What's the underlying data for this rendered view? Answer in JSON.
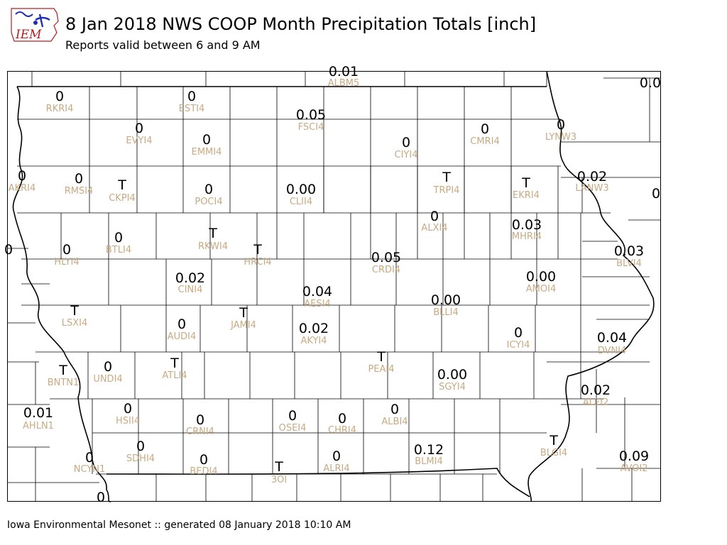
{
  "header": {
    "logo_text": "IEM",
    "title": "8 Jan 2018 NWS COOP Month Precipitation Totals [inch]",
    "subtitle": "Reports valid between 6 and 9 AM"
  },
  "footer": {
    "text": "Iowa Environmental Mesonet :: generated 08 January 2018 10:10 AM"
  },
  "colors": {
    "station_id": "#c8aa82",
    "value": "#000000",
    "county_line": "#000000",
    "logo_blue": "#1f2fb0",
    "logo_red": "#b22222"
  },
  "stations": [
    {
      "id": "ALBM5",
      "value": "0.01"
    },
    {
      "id": "RKRI4",
      "value": "0"
    },
    {
      "id": "ESTI4",
      "value": "0"
    },
    {
      "id": "FSCI4",
      "value": "0.05"
    },
    {
      "id": "EVYI4",
      "value": "0"
    },
    {
      "id": "EMMI4",
      "value": "0"
    },
    {
      "id": "CIYI4",
      "value": "0"
    },
    {
      "id": "CMRI4",
      "value": "0"
    },
    {
      "id": "LYNW3",
      "value": "0"
    },
    {
      "id": "RMSI4",
      "value": "0"
    },
    {
      "id": "CKPI4",
      "value": "T"
    },
    {
      "id": "POCI4",
      "value": "0"
    },
    {
      "id": "CLII4",
      "value": "0.00"
    },
    {
      "id": "TRPI4",
      "value": "T"
    },
    {
      "id": "EKRI4",
      "value": "T"
    },
    {
      "id": "LANW3",
      "value": "0.02"
    },
    {
      "id": "ALXI4",
      "value": "0"
    },
    {
      "id": "MHRI4",
      "value": "0.03"
    },
    {
      "id": "BTLI4",
      "value": "0"
    },
    {
      "id": "RKWI4",
      "value": "T"
    },
    {
      "id": "HRCI4",
      "value": "T"
    },
    {
      "id": "HLYI4",
      "value": "0"
    },
    {
      "id": "CRDI4",
      "value": "0.05"
    },
    {
      "id": "BLVI4",
      "value": "0.03"
    },
    {
      "id": "CINI4",
      "value": "0.02"
    },
    {
      "id": "AMOI4",
      "value": "0.00"
    },
    {
      "id": "AESI4",
      "value": "0.04"
    },
    {
      "id": "BLLI4",
      "value": "0.00"
    },
    {
      "id": "LSXI4",
      "value": "T"
    },
    {
      "id": "AUDI4",
      "value": "0"
    },
    {
      "id": "JAMI4",
      "value": "T"
    },
    {
      "id": "AKYI4",
      "value": "0.02"
    },
    {
      "id": "ICYI4",
      "value": "0"
    },
    {
      "id": "DVNI4",
      "value": "0.04"
    },
    {
      "id": "ATLI4",
      "value": "T"
    },
    {
      "id": "PEAI4",
      "value": "T"
    },
    {
      "id": "UNDI4",
      "value": "0"
    },
    {
      "id": "BNTN1",
      "value": "T"
    },
    {
      "id": "SGYI4",
      "value": "0.00"
    },
    {
      "id": "ALEI2",
      "value": "0.02"
    },
    {
      "id": "HSII4",
      "value": "0"
    },
    {
      "id": "CRNI4",
      "value": "0"
    },
    {
      "id": "OSEI4",
      "value": "0"
    },
    {
      "id": "CHRI4",
      "value": "0"
    },
    {
      "id": "ALBI4",
      "value": "0"
    },
    {
      "id": "AHLN1",
      "value": "0.01"
    },
    {
      "id": "BLGI4",
      "value": "T"
    },
    {
      "id": "SDHI4",
      "value": "0"
    },
    {
      "id": "ALRI4",
      "value": "0"
    },
    {
      "id": "BLMI4",
      "value": "0.12"
    },
    {
      "id": "AVOI2",
      "value": "0.09"
    },
    {
      "id": "NCYN1",
      "value": "0"
    },
    {
      "id": "BEDI4",
      "value": "0"
    },
    {
      "id": "3OI",
      "value": "T"
    },
    {
      "id": "AKRI4",
      "value": "0"
    }
  ],
  "edge_values": [
    "0.0",
    "0",
    "0",
    "0"
  ]
}
